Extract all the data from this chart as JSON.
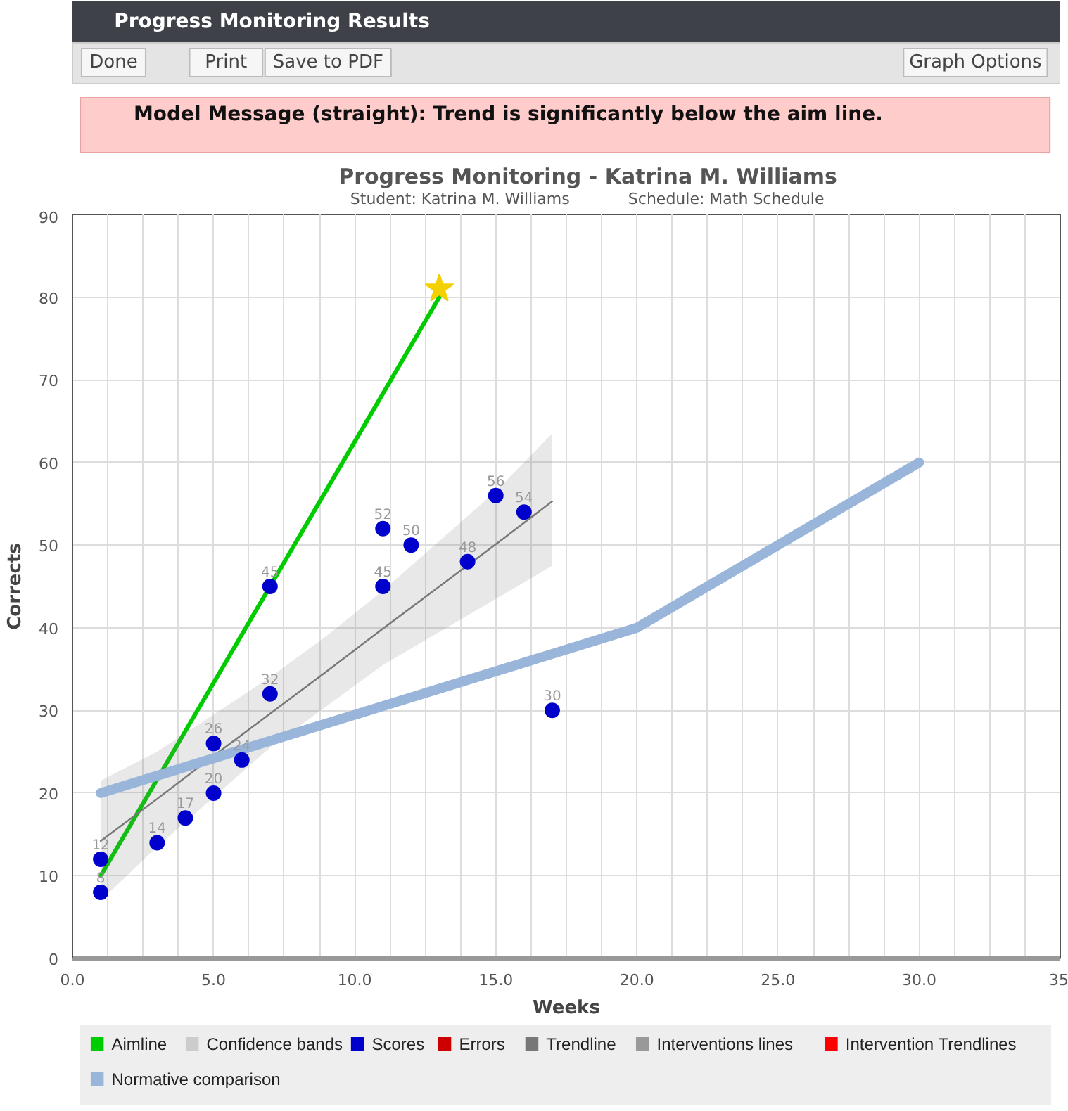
{
  "chart_data": {
    "type": "scatter",
    "title": "Progress Monitoring - Katrina M. Williams",
    "subtitle": "Student: Katrina M. Williams",
    "xlabel": "Weeks",
    "ylabel": "Corrects",
    "annotations": [
      "Progress Monitoring Results",
      "Done",
      "Print",
      "Save to PDF",
      "Graph Options",
      "Model Message (straight): Trend is significantly below the aim line.",
      "Schedule: Math Schedule"
    ],
    "xlim": [
      0,
      35
    ],
    "ylim": [
      0,
      90
    ],
    "xticks": [
      {
        "value": 0,
        "label": "0.0"
      },
      {
        "value": 1.25,
        "label": null
      },
      {
        "value": 2.5,
        "label": null
      },
      {
        "value": 3.75,
        "label": null
      },
      {
        "value": 5,
        "label": "5.0"
      },
      {
        "value": 6.25,
        "label": null
      },
      {
        "value": 7.5,
        "label": null
      },
      {
        "value": 8.75,
        "label": null
      },
      {
        "value": 10,
        "label": "10.0"
      },
      {
        "value": 11.25,
        "label": null
      },
      {
        "value": 12.5,
        "label": null
      },
      {
        "value": 13.75,
        "label": null
      },
      {
        "value": 15,
        "label": "15.0"
      },
      {
        "value": 16.25,
        "label": null
      },
      {
        "value": 17.5,
        "label": null
      },
      {
        "value": 18.75,
        "label": null
      },
      {
        "value": 20,
        "label": "20.0"
      },
      {
        "value": 21.25,
        "label": null
      },
      {
        "value": 22.5,
        "label": null
      },
      {
        "value": 23.75,
        "label": null
      },
      {
        "value": 25,
        "label": "25.0"
      },
      {
        "value": 26.25,
        "label": null
      },
      {
        "value": 27.5,
        "label": null
      },
      {
        "value": 28.75,
        "label": null
      },
      {
        "value": 30,
        "label": "30.0"
      },
      {
        "value": 31.25,
        "label": null
      },
      {
        "value": 32.5,
        "label": null
      },
      {
        "value": 33.75,
        "label": null
      },
      {
        "value": 35,
        "label": "35"
      }
    ],
    "yticks": [
      0,
      10,
      20,
      30,
      40,
      50,
      60,
      70,
      80,
      90
    ],
    "grid": true,
    "legend": "bottom",
    "series": [
      {
        "name": "Aimline",
        "type": "line",
        "color": "#00cc00",
        "x": [
          1,
          13
        ],
        "values": [
          10,
          80
        ]
      },
      {
        "name": "Confidence bands",
        "type": "area",
        "color": "#cccccc"
      },
      {
        "name": "Scores",
        "marker": "circle",
        "color": "#0000cc",
        "x": [
          1,
          1,
          3,
          4,
          5,
          5,
          6,
          7,
          7,
          11,
          11,
          12,
          14,
          15,
          16,
          17
        ],
        "values": [
          12,
          8,
          14,
          17,
          20,
          26,
          24,
          32,
          45,
          45,
          52,
          50,
          48,
          56,
          54,
          30
        ],
        "value_labels": [
          "12",
          "8",
          "14",
          "17",
          "20",
          "26",
          "24",
          "32",
          "45",
          "45",
          "52",
          "50",
          "48",
          "56",
          "54",
          "30"
        ]
      },
      {
        "name": "Errors",
        "marker": "circle",
        "color": "#cc0000"
      },
      {
        "name": "Trendline",
        "type": "line",
        "color": "#777777",
        "x": [
          1,
          3,
          5,
          7,
          9,
          11,
          13,
          15,
          17
        ],
        "values": [
          14.2,
          19.3,
          24.5,
          29.6,
          34.7,
          39.9,
          45.0,
          50.1,
          55.3
        ],
        "lower": [
          7,
          13.5,
          19.5,
          25.5,
          30.5,
          35.5,
          39.5,
          43.5,
          47.5
        ],
        "upper": [
          21.5,
          25,
          29.5,
          34,
          39,
          44.5,
          50.5,
          56.5,
          63.5
        ]
      },
      {
        "name": "Interventions lines",
        "type": "line",
        "color": "#999999"
      },
      {
        "name": "Intervention Trendlines",
        "type": "line",
        "color": "#ff0000"
      },
      {
        "name": "Normative comparison",
        "type": "line",
        "color": "#99b5da",
        "x": [
          1,
          20,
          30
        ],
        "values": [
          20,
          40,
          60
        ]
      },
      {
        "marker": "star",
        "color": "#f5d000",
        "x": [
          13
        ],
        "values": [
          81
        ]
      }
    ]
  }
}
